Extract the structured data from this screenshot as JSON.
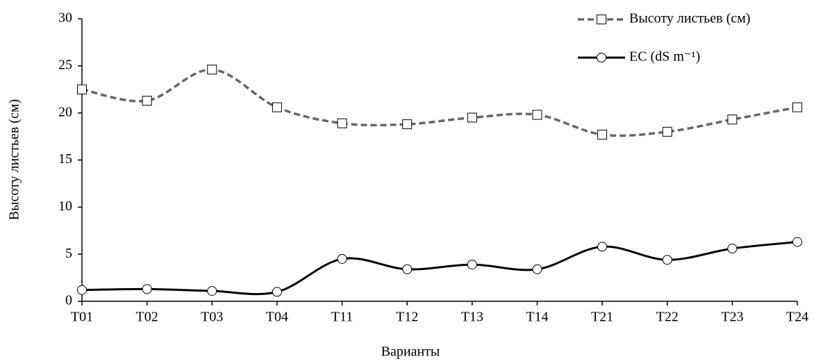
{
  "chart_data": {
    "type": "line",
    "x_label": "Варианты",
    "y_label": "Высоту листьев (см)",
    "categories": [
      "T01",
      "T02",
      "T03",
      "T04",
      "T11",
      "T12",
      "T13",
      "T14",
      "T21",
      "T22",
      "T23",
      "T24"
    ],
    "series": [
      {
        "name": "Высоту листьев (см)",
        "color": "#666666",
        "dashed": true,
        "marker": "square",
        "values": [
          22.5,
          21.3,
          24.6,
          20.6,
          18.9,
          18.8,
          19.5,
          19.8,
          17.7,
          18.0,
          19.3,
          20.6
        ]
      },
      {
        "name": "EC (dS m⁻¹)",
        "color": "#000000",
        "dashed": false,
        "marker": "circle",
        "values": [
          1.2,
          1.3,
          1.1,
          1.0,
          4.5,
          3.4,
          3.9,
          3.4,
          5.8,
          4.4,
          5.6,
          6.3
        ]
      }
    ],
    "ylim": [
      0,
      30
    ],
    "yticks": [
      0,
      5,
      10,
      15,
      20,
      25,
      30
    ],
    "grid": false,
    "smooth": true,
    "legend": "top-right"
  }
}
